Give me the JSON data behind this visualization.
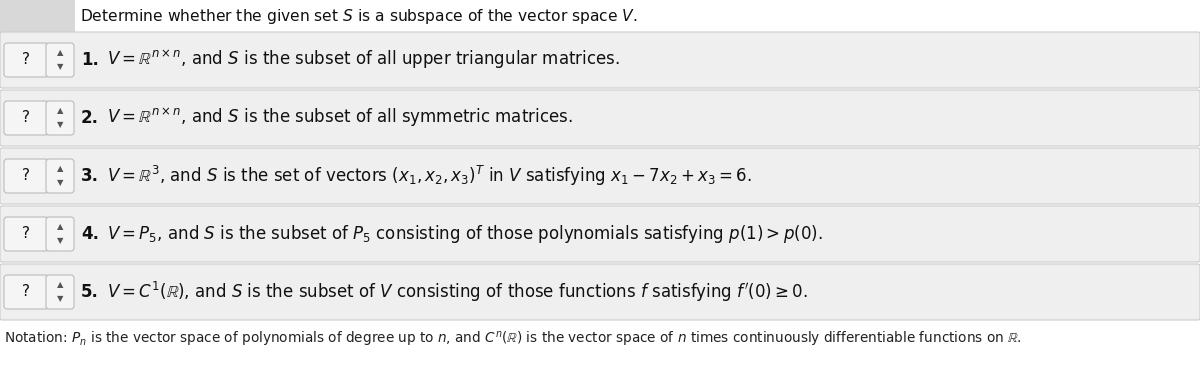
{
  "title": "Determine whether the given set $S$ is a subspace of the vector space $V$.",
  "items": [
    {
      "number": "1.",
      "text": "$V = \\mathbb{R}^{n \\times n}$, and $S$ is the subset of all upper triangular matrices."
    },
    {
      "number": "2.",
      "text": "$V = \\mathbb{R}^{n \\times n}$, and $S$ is the subset of all symmetric matrices."
    },
    {
      "number": "3.",
      "text": "$V = \\mathbb{R}^3$, and $S$ is the set of vectors $(x_1, x_2, x_3)^T$ in $V$ satisfying $x_1 - 7x_2 + x_3 = 6$."
    },
    {
      "number": "4.",
      "text": "$V = P_5$, and $S$ is the subset of $P_5$ consisting of those polynomials satisfying $p(1) > p(0)$."
    },
    {
      "number": "5.",
      "text": "$V = C^1(\\mathbb{R})$, and $S$ is the subset of $V$ consisting of those functions $f$ satisfying $f'(0) \\geq 0$."
    }
  ],
  "notation": "Notation: $P_n$ is the vector space of polynomials of degree up to $n$, and $C^n(\\mathbb{R})$ is the vector space of $n$ times continuously differentiable functions on $\\mathbb{R}$.",
  "bg_color": "#ffffff",
  "box_bg": "#e8e8e8",
  "box_border": "#bbbbbb",
  "title_left_bg": "#d8d8d8",
  "text_color": "#111111",
  "notation_color": "#222222",
  "row_bg": "#efefef",
  "row_border": "#cccccc"
}
